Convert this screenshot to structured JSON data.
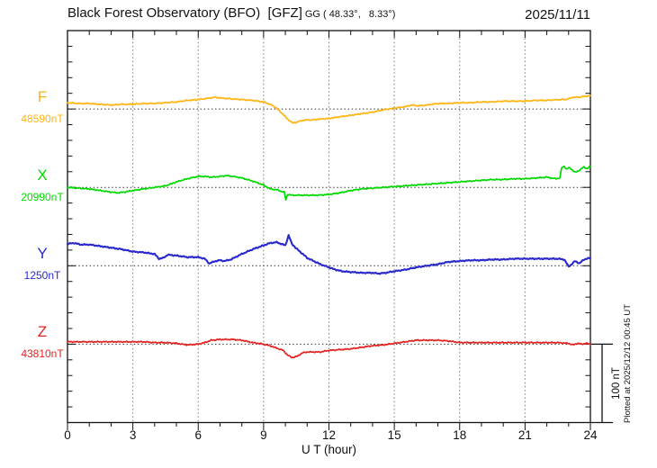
{
  "header": {
    "title_main": "Black Forest Observatory (BFO)  [GFZ]",
    "title_sub": "GG ( 48.33°,   8.33°)",
    "date": "2025/11/11"
  },
  "side": {
    "plotted_at": "Plotted at 2025/12/12 00:45 UT"
  },
  "chart_data": {
    "type": "line",
    "title": "Black Forest Observatory (BFO) [GFZ] magnetogram",
    "date": "2025/11/11",
    "x_axis": {
      "label": "U T (hour)",
      "min": 0,
      "max": 24,
      "major_tick_step_hours": 3,
      "minor_tick_step_hours": 1,
      "tick_labels": [
        "0",
        "3",
        "6",
        "9",
        "12",
        "15",
        "18",
        "21",
        "24"
      ]
    },
    "y_axis": {
      "nT_per_division": 100,
      "minor_tick_nT": 20,
      "scale_bar_nT": 100,
      "scale_bar_label": "100 nT"
    },
    "grid": {
      "vertical_dotted_every_hours": 3,
      "horizontal_dotted_at_baselines": true
    },
    "series": [
      {
        "name": "F",
        "color": "#ffb410",
        "base_label": "48590nT",
        "base_value_nT": 48590,
        "points": [
          [
            0,
            8
          ],
          [
            0.5,
            7
          ],
          [
            1,
            7
          ],
          [
            1.5,
            6
          ],
          [
            2,
            5
          ],
          [
            2.5,
            6
          ],
          [
            3,
            6
          ],
          [
            3.5,
            7
          ],
          [
            4,
            7
          ],
          [
            4.5,
            8
          ],
          [
            5,
            9
          ],
          [
            5.5,
            11
          ],
          [
            6,
            12
          ],
          [
            6.5,
            14
          ],
          [
            6.8,
            15
          ],
          [
            7,
            14
          ],
          [
            7.5,
            13
          ],
          [
            8,
            12
          ],
          [
            8.5,
            11
          ],
          [
            9,
            9
          ],
          [
            9.3,
            6
          ],
          [
            9.6,
            1
          ],
          [
            9.9,
            -7
          ],
          [
            10.1,
            -13
          ],
          [
            10.35,
            -18
          ],
          [
            10.6,
            -16
          ],
          [
            10.9,
            -14
          ],
          [
            11.2,
            -14
          ],
          [
            11.5,
            -13
          ],
          [
            12,
            -12
          ],
          [
            12.5,
            -10
          ],
          [
            13,
            -8
          ],
          [
            13.5,
            -6
          ],
          [
            14,
            -4
          ],
          [
            14.5,
            -1
          ],
          [
            15,
            1
          ],
          [
            15.5,
            3
          ],
          [
            15.8,
            5
          ],
          [
            16.1,
            4
          ],
          [
            16.5,
            5
          ],
          [
            17,
            7
          ],
          [
            17.5,
            7
          ],
          [
            18,
            8
          ],
          [
            18.5,
            8
          ],
          [
            19,
            9
          ],
          [
            19.5,
            9
          ],
          [
            20,
            10
          ],
          [
            20.5,
            10
          ],
          [
            21,
            10
          ],
          [
            21.5,
            11
          ],
          [
            22,
            11
          ],
          [
            22.5,
            12
          ],
          [
            22.8,
            12
          ],
          [
            23,
            13
          ],
          [
            23.2,
            15
          ],
          [
            23.5,
            15
          ],
          [
            23.7,
            16
          ],
          [
            24,
            17
          ]
        ]
      },
      {
        "name": "X",
        "color": "#00d900",
        "base_label": "20990nT",
        "base_value_nT": 20990,
        "points": [
          [
            0,
            0
          ],
          [
            0.5,
            -1
          ],
          [
            1,
            -2
          ],
          [
            1.5,
            -4
          ],
          [
            2,
            -6
          ],
          [
            2.3,
            -7
          ],
          [
            2.6,
            -6
          ],
          [
            3,
            -4
          ],
          [
            3.5,
            -2
          ],
          [
            4,
            0
          ],
          [
            4.5,
            2
          ],
          [
            5,
            7
          ],
          [
            5.5,
            11
          ],
          [
            6,
            14
          ],
          [
            6.3,
            14
          ],
          [
            6.6,
            13
          ],
          [
            7,
            14
          ],
          [
            7.3,
            15
          ],
          [
            7.6,
            14
          ],
          [
            8,
            12
          ],
          [
            8.5,
            8
          ],
          [
            9,
            3
          ],
          [
            9.3,
            -2
          ],
          [
            9.6,
            -3
          ],
          [
            9.8,
            -5
          ],
          [
            9.95,
            -6
          ],
          [
            10.02,
            -16
          ],
          [
            10.1,
            -9
          ],
          [
            10.3,
            -10
          ],
          [
            10.6,
            -10
          ],
          [
            11,
            -10
          ],
          [
            11.5,
            -10
          ],
          [
            12,
            -9
          ],
          [
            12.5,
            -7
          ],
          [
            13,
            -4
          ],
          [
            13.5,
            -2
          ],
          [
            14,
            -1
          ],
          [
            14.5,
            0
          ],
          [
            15,
            1
          ],
          [
            15.5,
            2
          ],
          [
            16,
            3
          ],
          [
            16.5,
            4
          ],
          [
            17,
            5
          ],
          [
            17.5,
            6
          ],
          [
            18,
            7
          ],
          [
            18.5,
            8
          ],
          [
            19,
            9
          ],
          [
            19.5,
            10
          ],
          [
            20,
            10
          ],
          [
            20.5,
            11
          ],
          [
            21,
            11
          ],
          [
            21.5,
            12
          ],
          [
            22,
            13
          ],
          [
            22.2,
            12
          ],
          [
            22.4,
            11
          ],
          [
            22.6,
            12
          ],
          [
            22.68,
            25
          ],
          [
            22.8,
            27
          ],
          [
            22.9,
            23
          ],
          [
            23,
            25
          ],
          [
            23.1,
            24
          ],
          [
            23.3,
            19
          ],
          [
            23.5,
            22
          ],
          [
            23.7,
            26
          ],
          [
            23.85,
            24
          ],
          [
            24,
            27
          ]
        ]
      },
      {
        "name": "Y",
        "color": "#2929cc",
        "base_label": "1250nT",
        "base_value_nT": 1250,
        "points": [
          [
            0,
            28
          ],
          [
            0.3,
            29
          ],
          [
            0.6,
            27
          ],
          [
            1,
            27
          ],
          [
            1.5,
            25
          ],
          [
            2,
            23
          ],
          [
            2.5,
            21
          ],
          [
            3,
            18
          ],
          [
            3.5,
            17
          ],
          [
            4,
            15
          ],
          [
            4.2,
            9
          ],
          [
            4.4,
            10
          ],
          [
            4.6,
            14
          ],
          [
            5,
            13
          ],
          [
            5.5,
            11
          ],
          [
            6,
            11
          ],
          [
            6.3,
            9
          ],
          [
            6.5,
            3
          ],
          [
            6.8,
            6
          ],
          [
            7,
            7
          ],
          [
            7.2,
            6
          ],
          [
            7.5,
            8
          ],
          [
            8,
            15
          ],
          [
            8.5,
            21
          ],
          [
            9,
            26
          ],
          [
            9.3,
            29
          ],
          [
            9.6,
            30
          ],
          [
            9.8,
            28
          ],
          [
            10,
            26
          ],
          [
            10.15,
            39
          ],
          [
            10.3,
            28
          ],
          [
            10.5,
            22
          ],
          [
            10.8,
            15
          ],
          [
            11,
            10
          ],
          [
            11.3,
            6
          ],
          [
            11.6,
            2
          ],
          [
            12,
            -2
          ],
          [
            12.3,
            -5
          ],
          [
            12.6,
            -7
          ],
          [
            13,
            -8
          ],
          [
            13.5,
            -9
          ],
          [
            14,
            -9
          ],
          [
            14.3,
            -10
          ],
          [
            14.6,
            -9
          ],
          [
            15,
            -7
          ],
          [
            15.5,
            -5
          ],
          [
            16,
            -2
          ],
          [
            16.5,
            0
          ],
          [
            17,
            2
          ],
          [
            17.5,
            5
          ],
          [
            18,
            6
          ],
          [
            18.5,
            7
          ],
          [
            19,
            7
          ],
          [
            19.5,
            8
          ],
          [
            20,
            8
          ],
          [
            20.5,
            9
          ],
          [
            21,
            9
          ],
          [
            21.5,
            9
          ],
          [
            22,
            9
          ],
          [
            22.5,
            9
          ],
          [
            22.8,
            8
          ],
          [
            23,
            -1
          ],
          [
            23.1,
            1
          ],
          [
            23.3,
            6
          ],
          [
            23.5,
            3
          ],
          [
            23.7,
            8
          ],
          [
            24,
            10
          ]
        ]
      },
      {
        "name": "Z",
        "color": "#e62020",
        "base_label": "43810nT",
        "base_value_nT": 43810,
        "points": [
          [
            0,
            3
          ],
          [
            0.5,
            3
          ],
          [
            1,
            3
          ],
          [
            1.5,
            3
          ],
          [
            2,
            3
          ],
          [
            2.5,
            3
          ],
          [
            3,
            3
          ],
          [
            3.5,
            3
          ],
          [
            4,
            2
          ],
          [
            4.5,
            2
          ],
          [
            5,
            1
          ],
          [
            5.5,
            -1
          ],
          [
            6,
            0
          ],
          [
            6.3,
            2
          ],
          [
            6.6,
            5
          ],
          [
            7,
            6
          ],
          [
            7.3,
            6
          ],
          [
            7.6,
            6
          ],
          [
            8,
            5
          ],
          [
            8.5,
            2
          ],
          [
            9,
            0
          ],
          [
            9.3,
            -2
          ],
          [
            9.6,
            -5
          ],
          [
            9.9,
            -8
          ],
          [
            10.1,
            -14
          ],
          [
            10.3,
            -17
          ],
          [
            10.5,
            -16
          ],
          [
            10.8,
            -11
          ],
          [
            11,
            -10
          ],
          [
            11.3,
            -10
          ],
          [
            11.6,
            -10
          ],
          [
            12,
            -8
          ],
          [
            12.5,
            -7
          ],
          [
            13,
            -6
          ],
          [
            13.5,
            -4
          ],
          [
            14,
            -2
          ],
          [
            14.5,
            -1
          ],
          [
            15,
            1
          ],
          [
            15.5,
            3
          ],
          [
            16,
            5
          ],
          [
            16.5,
            5
          ],
          [
            17,
            5
          ],
          [
            17.5,
            4
          ],
          [
            18,
            2
          ],
          [
            18.5,
            2
          ],
          [
            19,
            2
          ],
          [
            19.5,
            2
          ],
          [
            20,
            2
          ],
          [
            20.5,
            2
          ],
          [
            21,
            2
          ],
          [
            21.5,
            2
          ],
          [
            22,
            2
          ],
          [
            22.5,
            2
          ],
          [
            23,
            1
          ],
          [
            23.2,
            -1
          ],
          [
            23.4,
            1
          ],
          [
            23.6,
            0
          ],
          [
            23.8,
            1
          ],
          [
            24,
            0
          ]
        ]
      }
    ]
  }
}
